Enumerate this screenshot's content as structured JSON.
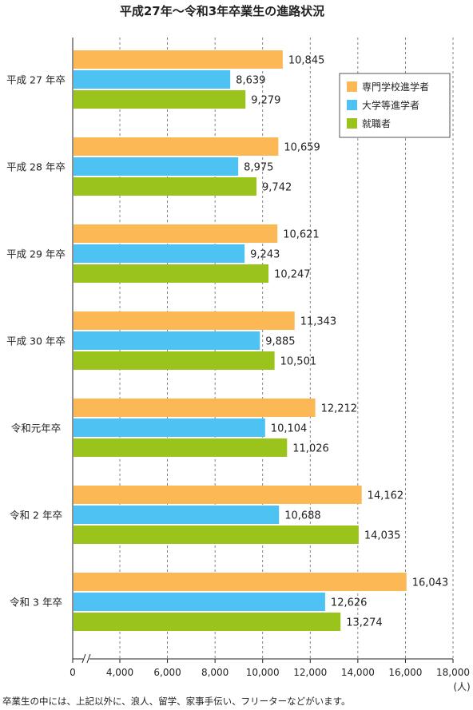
{
  "chart_data": {
    "type": "bar",
    "orientation": "horizontal",
    "title": "平成27年〜令和3年卒業生の進路状況",
    "categories": [
      "平成 27 年卒",
      "平成 28 年卒",
      "平成 29 年卒",
      "平成 30 年卒",
      "令和元年卒",
      "令和 2 年卒",
      "令和 3 年卒"
    ],
    "series": [
      {
        "name": "専門学校進学者",
        "color": "#fbb854",
        "values": [
          10845,
          10659,
          10621,
          11343,
          12212,
          14162,
          16043
        ]
      },
      {
        "name": "大学等進学者",
        "color": "#4ec3f3",
        "values": [
          8639,
          8975,
          9243,
          9885,
          10104,
          10688,
          12626
        ]
      },
      {
        "name": "就職者",
        "color": "#9ac31c",
        "values": [
          9279,
          9742,
          10247,
          10501,
          11026,
          14035,
          13274
        ]
      }
    ],
    "value_labels": [
      [
        "10,845",
        "8,639",
        "9,279"
      ],
      [
        "10,659",
        "8,975",
        "9,742"
      ],
      [
        "10,621",
        "9,243",
        "10,247"
      ],
      [
        "11,343",
        "9,885",
        "10,501"
      ],
      [
        "12,212",
        "10,104",
        "11,026"
      ],
      [
        "14,162",
        "10,688",
        "14,035"
      ],
      [
        "16,043",
        "12,626",
        "13,274"
      ]
    ],
    "x_ticks": [
      0,
      4000,
      6000,
      8000,
      10000,
      12000,
      14000,
      16000,
      18000
    ],
    "x_tick_labels": [
      "0",
      "4,000",
      "6,000",
      "8,000",
      "10,000",
      "12,000",
      "14,000",
      "16,000",
      "18,000"
    ],
    "xlim": [
      0,
      18000
    ],
    "axis_break": true,
    "x_unit": "(人)",
    "xlabel": "",
    "ylabel": "",
    "grid": "vertical dashed",
    "legend_position": "top-right",
    "footnote": "卒業生の中には、上記以外に、浪人、留学、家事手伝い、フリーターなどがいます。"
  }
}
